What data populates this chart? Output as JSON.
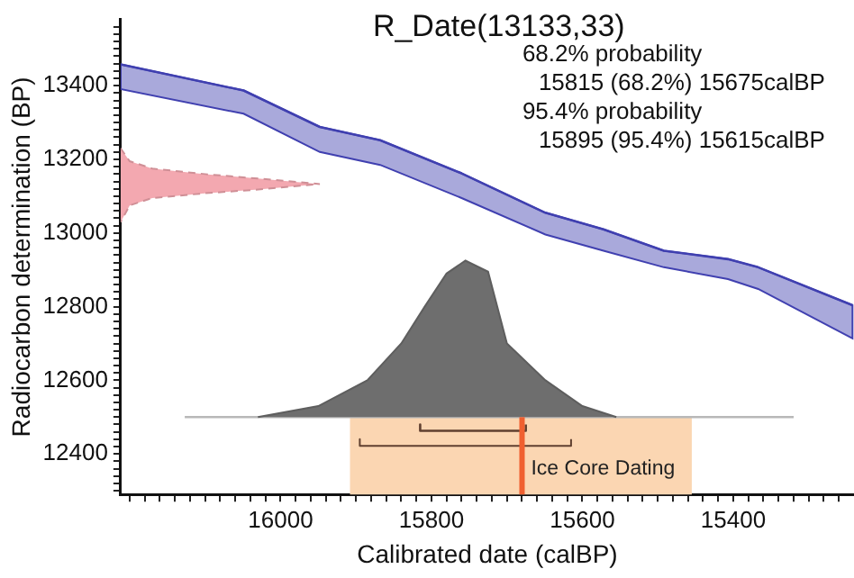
{
  "chart_data": {
    "type": "area",
    "title": "R_Date(13133,33)",
    "xlabel": "Calibrated date (calBP)",
    "ylabel": "Radiocarbon determination (BP)",
    "annotations": [
      "68.2% probability",
      "15815 (68.2%) 15675calBP",
      "95.4% probability",
      "15895 (95.4%) 15615calBP"
    ],
    "xlim": [
      16212,
      15240
    ],
    "ylim": [
      12290,
      13580
    ],
    "xticks": [
      {
        "value": 16200,
        "label": null
      },
      {
        "value": 16180,
        "label": null
      },
      {
        "value": 16160,
        "label": null
      },
      {
        "value": 16140,
        "label": null
      },
      {
        "value": 16120,
        "label": null
      },
      {
        "value": 16100,
        "label": null
      },
      {
        "value": 16080,
        "label": null
      },
      {
        "value": 16060,
        "label": null
      },
      {
        "value": 16040,
        "label": null
      },
      {
        "value": 16020,
        "label": null
      },
      16000,
      {
        "value": 15980,
        "label": null
      },
      {
        "value": 15960,
        "label": null
      },
      {
        "value": 15940,
        "label": null
      },
      {
        "value": 15920,
        "label": null
      },
      {
        "value": 15900,
        "label": null
      },
      {
        "value": 15880,
        "label": null
      },
      {
        "value": 15860,
        "label": null
      },
      {
        "value": 15840,
        "label": null
      },
      {
        "value": 15820,
        "label": null
      },
      15800,
      {
        "value": 15780,
        "label": null
      },
      {
        "value": 15760,
        "label": null
      },
      {
        "value": 15740,
        "label": null
      },
      {
        "value": 15720,
        "label": null
      },
      {
        "value": 15700,
        "label": null
      },
      {
        "value": 15680,
        "label": null
      },
      {
        "value": 15660,
        "label": null
      },
      {
        "value": 15640,
        "label": null
      },
      {
        "value": 15620,
        "label": null
      },
      15600,
      {
        "value": 15580,
        "label": null
      },
      {
        "value": 15560,
        "label": null
      },
      {
        "value": 15540,
        "label": null
      },
      {
        "value": 15520,
        "label": null
      },
      {
        "value": 15500,
        "label": null
      },
      {
        "value": 15480,
        "label": null
      },
      {
        "value": 15460,
        "label": null
      },
      {
        "value": 15440,
        "label": null
      },
      {
        "value": 15420,
        "label": null
      },
      15400,
      {
        "value": 15380,
        "label": null
      },
      {
        "value": 15360,
        "label": null
      },
      {
        "value": 15340,
        "label": null
      },
      {
        "value": 15320,
        "label": null
      },
      {
        "value": 15300,
        "label": null
      },
      {
        "value": 15280,
        "label": null
      },
      {
        "value": 15260,
        "label": null
      }
    ],
    "yticks": [
      {
        "value": 12300,
        "label": null
      },
      {
        "value": 12320,
        "label": null
      },
      {
        "value": 12340,
        "label": null
      },
      {
        "value": 12360,
        "label": null
      },
      {
        "value": 12380,
        "label": null
      },
      12400,
      {
        "value": 12420,
        "label": null
      },
      {
        "value": 12440,
        "label": null
      },
      {
        "value": 12460,
        "label": null
      },
      {
        "value": 12480,
        "label": null
      },
      {
        "value": 12500,
        "label": null
      },
      {
        "value": 12520,
        "label": null
      },
      {
        "value": 12540,
        "label": null
      },
      {
        "value": 12560,
        "label": null
      },
      {
        "value": 12580,
        "label": null
      },
      12600,
      {
        "value": 12620,
        "label": null
      },
      {
        "value": 12640,
        "label": null
      },
      {
        "value": 12660,
        "label": null
      },
      {
        "value": 12680,
        "label": null
      },
      {
        "value": 12700,
        "label": null
      },
      {
        "value": 12720,
        "label": null
      },
      {
        "value": 12740,
        "label": null
      },
      {
        "value": 12760,
        "label": null
      },
      {
        "value": 12780,
        "label": null
      },
      12800,
      {
        "value": 12820,
        "label": null
      },
      {
        "value": 12840,
        "label": null
      },
      {
        "value": 12860,
        "label": null
      },
      {
        "value": 12880,
        "label": null
      },
      {
        "value": 12900,
        "label": null
      },
      {
        "value": 12920,
        "label": null
      },
      {
        "value": 12940,
        "label": null
      },
      {
        "value": 12960,
        "label": null
      },
      {
        "value": 12980,
        "label": null
      },
      13000,
      {
        "value": 13020,
        "label": null
      },
      {
        "value": 13040,
        "label": null
      },
      {
        "value": 13060,
        "label": null
      },
      {
        "value": 13080,
        "label": null
      },
      {
        "value": 13100,
        "label": null
      },
      {
        "value": 13120,
        "label": null
      },
      {
        "value": 13140,
        "label": null
      },
      {
        "value": 13160,
        "label": null
      },
      {
        "value": 13180,
        "label": null
      },
      13200,
      {
        "value": 13220,
        "label": null
      },
      {
        "value": 13240,
        "label": null
      },
      {
        "value": 13260,
        "label": null
      },
      {
        "value": 13280,
        "label": null
      },
      {
        "value": 13300,
        "label": null
      },
      {
        "value": 13320,
        "label": null
      },
      {
        "value": 13340,
        "label": null
      },
      {
        "value": 13360,
        "label": null
      },
      {
        "value": 13380,
        "label": null
      },
      13400,
      {
        "value": 13420,
        "label": null
      },
      {
        "value": 13440,
        "label": null
      },
      {
        "value": 13460,
        "label": null
      },
      {
        "value": 13480,
        "label": null
      },
      {
        "value": 13500,
        "label": null
      },
      {
        "value": 13520,
        "label": null
      },
      {
        "value": 13540,
        "label": null
      },
      {
        "value": 13560,
        "label": null
      }
    ],
    "series": [
      {
        "type": "line",
        "color": "#4040b0",
        "x": [
          16212,
          16049,
          15948,
          15868,
          15760,
          15649,
          15572,
          15492,
          15407,
          15367,
          15242
        ],
        "values": [
          13458,
          13387,
          13288,
          13252,
          13162,
          13055,
          13010,
          12952,
          12929,
          12907,
          12804
        ],
        "upper": [
          13458,
          13387,
          13288,
          13252,
          13162,
          13055,
          13010,
          12952,
          12929,
          12907,
          12804
        ],
        "lower": [
          13391,
          13324,
          13220,
          13185,
          13095,
          12996,
          12952,
          12907,
          12875,
          12848,
          12714
        ]
      },
      {
        "type": "area",
        "color": "#f3a8b0",
        "line_style": "dashed",
        "x": [
          16212,
          16200,
          16170,
          16100,
          16030,
          15948,
          16030,
          16100,
          16170,
          16200,
          16212
        ],
        "values": [
          13230,
          13195,
          13175,
          13160,
          13148,
          13133,
          13118,
          13108,
          13095,
          13075,
          13030
        ]
      },
      {
        "type": "area",
        "color": "#6e6e6e",
        "x": [
          16030,
          15950,
          15885,
          15840,
          15809,
          15780,
          15755,
          15725,
          15700,
          15649,
          15600,
          15555
        ],
        "values": [
          12500,
          12530,
          12600,
          12700,
          12800,
          12890,
          12925,
          12895,
          12700,
          12600,
          12530,
          12500
        ]
      },
      {
        "type": "line",
        "color": "#b8b8b8",
        "x": [
          16127,
          15320
        ],
        "values": [
          12500,
          12500
        ]
      },
      {
        "type": "line",
        "color": "#604030",
        "x": [
          15815,
          15815,
          15675,
          15675
        ],
        "values": [
          12480,
          12463,
          12463,
          12480
        ]
      },
      {
        "type": "line",
        "color": "#604030",
        "x": [
          15895,
          15895,
          15615,
          15615
        ],
        "values": [
          12440,
          12422,
          12422,
          12440
        ]
      }
    ],
    "bands": [
      {
        "axis": "x",
        "from": 15908,
        "to": 15455,
        "color": "#fbd6b2"
      }
    ],
    "ref_lines": [
      {
        "axis": "x",
        "value": 15680,
        "label": "Ice Core Dating",
        "color": "#f06030"
      }
    ]
  }
}
